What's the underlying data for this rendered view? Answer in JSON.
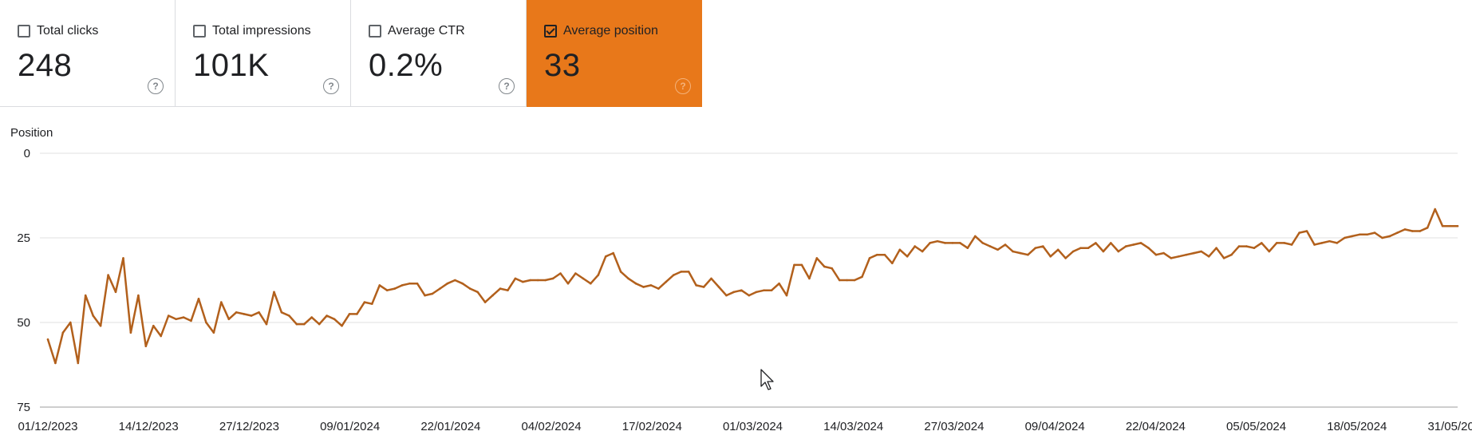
{
  "metrics": [
    {
      "label": "Total clicks",
      "value": "248",
      "checked": false
    },
    {
      "label": "Total impressions",
      "value": "101K",
      "checked": false
    },
    {
      "label": "Average CTR",
      "value": "0.2%",
      "checked": false
    },
    {
      "label": "Average position",
      "value": "33",
      "checked": true
    }
  ],
  "help_icon_glyph": "?",
  "colors": {
    "active_card": "#e8781a",
    "line": "#b2601c",
    "gridline": "#e0e0e0",
    "baseline": "#9e9e9e"
  },
  "chart_data": {
    "type": "line",
    "ylabel": "Position",
    "y_reversed": true,
    "ylim": [
      0,
      75
    ],
    "yticks": [
      0,
      25,
      50,
      75
    ],
    "grid": true,
    "x_start": "01/12/2023",
    "x_end": "31/05/2024",
    "xticks": [
      "01/12/2023",
      "14/12/2023",
      "27/12/2023",
      "09/01/2024",
      "22/01/2024",
      "04/02/2024",
      "17/02/2024",
      "01/03/2024",
      "14/03/2024",
      "27/03/2024",
      "09/04/2024",
      "22/04/2024",
      "05/05/2024",
      "18/05/2024",
      "31/05/2024"
    ],
    "series": [
      {
        "values": [
          55,
          62,
          53,
          50,
          62,
          42,
          48,
          51,
          36,
          41,
          31,
          53,
          42,
          57,
          51,
          54,
          48,
          49,
          48.5,
          49.5,
          43,
          50,
          53,
          44,
          49,
          47,
          47.5,
          48,
          47,
          50.5,
          41,
          47,
          48,
          50.5,
          50.5,
          48.5,
          50.5,
          48,
          49,
          51,
          47.5,
          47.5,
          44,
          44.5,
          39,
          40.5,
          40,
          39,
          38.5,
          38.5,
          42,
          41.5,
          40,
          38.5,
          37.5,
          38.5,
          40,
          41,
          44,
          42,
          40,
          40.5,
          37,
          38,
          37.5,
          37.5,
          37.5,
          37,
          35.5,
          38.5,
          35.5,
          37,
          38.5,
          36,
          30.5,
          29.5,
          35,
          37,
          38.5,
          39.5,
          39,
          40,
          38,
          36,
          35,
          35,
          39,
          39.5,
          37,
          39.5,
          42,
          41,
          40.5,
          42,
          41,
          40.5,
          40.5,
          38.5,
          42,
          33,
          33,
          37,
          31,
          33.5,
          34,
          37.5,
          37.5,
          37.5,
          36.5,
          31,
          30,
          30,
          32.5,
          28.5,
          30.5,
          27.5,
          29,
          26.5,
          26,
          26.5,
          26.5,
          26.5,
          28,
          24.5,
          26.5,
          27.5,
          28.5,
          27,
          29,
          29.5,
          30,
          28,
          27.5,
          30.5,
          28.5,
          31,
          29,
          28,
          28,
          26.5,
          29,
          26.5,
          29,
          27.5,
          27,
          26.5,
          28,
          30,
          29.5,
          31,
          30.5,
          30,
          29.5,
          29,
          30.5,
          28,
          31,
          30,
          27.5,
          27.5,
          28,
          26.5,
          29,
          26.5,
          26.5,
          27,
          23.5,
          23,
          27,
          26.5,
          26,
          26.5,
          25,
          24.5,
          24,
          24,
          23.5,
          25,
          24.5,
          23.5,
          22.5,
          23,
          23,
          22,
          16.5,
          21.5,
          21.5,
          21.5
        ]
      }
    ]
  }
}
